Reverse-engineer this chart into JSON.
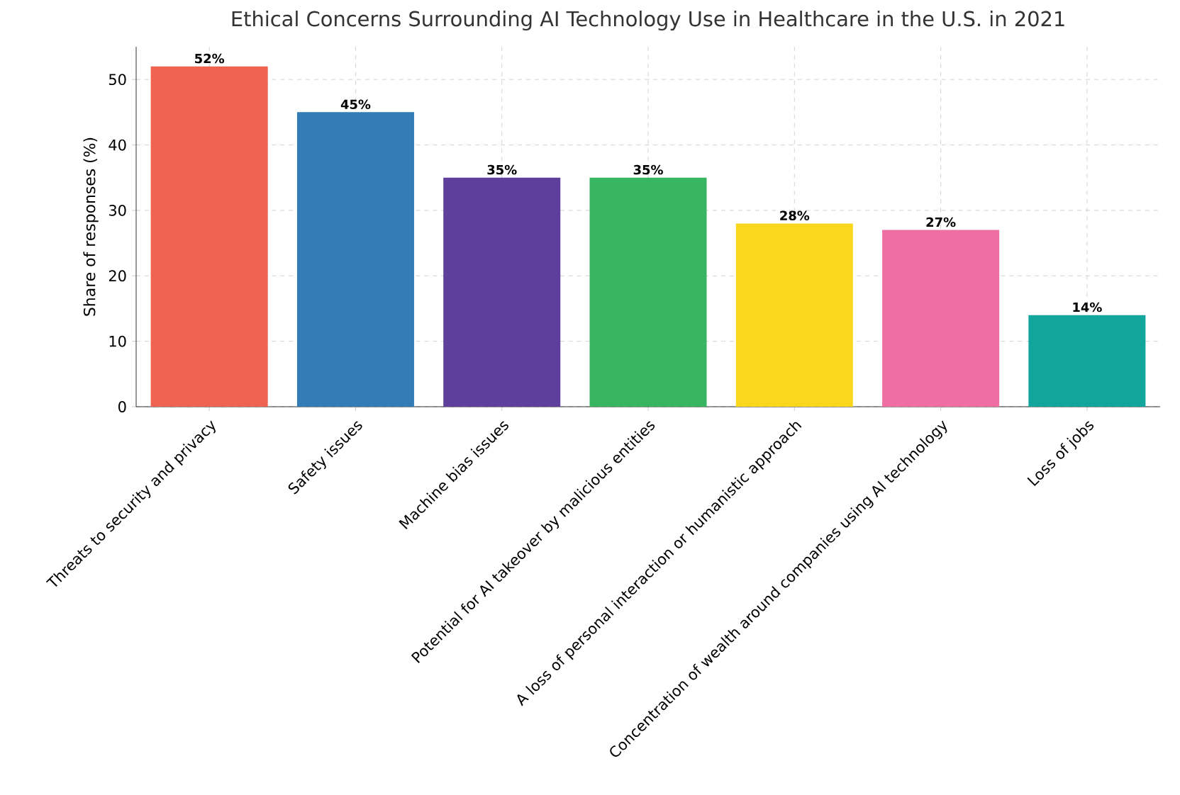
{
  "chart_data": {
    "type": "bar",
    "title": "Ethical Concerns Surrounding AI Technology Use in Healthcare in the U.S. in 2021",
    "ylabel": "Share of responses (%)",
    "categories": [
      "Threats to security and privacy",
      "Safety issues",
      "Machine bias issues",
      "Potential for AI takeover by malicious entities",
      "A loss of personal interaction or humanistic approach",
      "Concentration of wealth around companies using AI technology",
      "Loss of jobs"
    ],
    "values": [
      52,
      45,
      35,
      35,
      28,
      27,
      14
    ],
    "value_labels": [
      "52%",
      "45%",
      "35%",
      "35%",
      "28%",
      "27%",
      "14%"
    ],
    "colors": [
      "#ef6350",
      "#337cb5",
      "#5e3f9b",
      "#37b561",
      "#fad61d",
      "#ef6fa4",
      "#12a59c"
    ],
    "ylim": [
      0,
      55
    ],
    "yticks": [
      0,
      10,
      20,
      30,
      40,
      50
    ],
    "grid": true
  }
}
